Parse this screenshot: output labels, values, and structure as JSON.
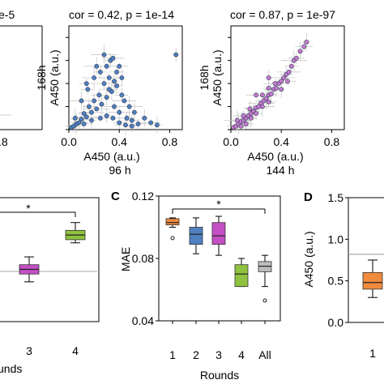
{
  "colors": {
    "blue": "#4f80c0",
    "pink": "#c87ad0",
    "orange": "#f08a3c",
    "green": "#8fc23e",
    "magenta": "#c44fc4",
    "gray": "#bdbdbd",
    "purple": "#a48ad6"
  },
  "chart_data": [
    {
      "id": "scatter-left-cut",
      "type": "scatter",
      "title": "e-5",
      "x_ticks": [
        ".8"
      ],
      "x_range": [
        0,
        0.9
      ]
    },
    {
      "id": "scatter-96h",
      "type": "scatter",
      "title": "cor = 0.42, p = 1e-14",
      "xlabel": "A450 (a.u.)",
      "xlabel2": "96 h",
      "ylabel": "168h",
      "ylabel2": "A450 (a.u.)",
      "x_range": [
        0,
        0.9
      ],
      "y_range": [
        0,
        0.9
      ],
      "x_ticks": [
        "0.0",
        "0.4",
        "0.8"
      ],
      "y_ticks": [
        "0.0",
        "0.2",
        "0.4",
        "0.6",
        "0.8"
      ],
      "color": "blue",
      "points": [
        [
          0.02,
          0.02
        ],
        [
          0.04,
          0.03
        ],
        [
          0.06,
          0.05
        ],
        [
          0.08,
          0.06
        ],
        [
          0.05,
          0.1
        ],
        [
          0.1,
          0.09
        ],
        [
          0.12,
          0.14
        ],
        [
          0.14,
          0.11
        ],
        [
          0.16,
          0.2
        ],
        [
          0.18,
          0.15
        ],
        [
          0.2,
          0.25
        ],
        [
          0.22,
          0.18
        ],
        [
          0.24,
          0.3
        ],
        [
          0.26,
          0.22
        ],
        [
          0.28,
          0.4
        ],
        [
          0.3,
          0.28
        ],
        [
          0.32,
          0.45
        ],
        [
          0.34,
          0.33
        ],
        [
          0.36,
          0.2
        ],
        [
          0.38,
          0.38
        ],
        [
          0.4,
          0.15
        ],
        [
          0.42,
          0.3
        ],
        [
          0.44,
          0.25
        ],
        [
          0.46,
          0.1
        ],
        [
          0.48,
          0.2
        ],
        [
          0.5,
          0.08
        ],
        [
          0.52,
          0.15
        ],
        [
          0.55,
          0.05
        ],
        [
          0.6,
          0.1
        ],
        [
          0.65,
          0.06
        ],
        [
          0.7,
          0.04
        ],
        [
          0.3,
          0.55
        ],
        [
          0.33,
          0.6
        ],
        [
          0.35,
          0.62
        ],
        [
          0.25,
          0.5
        ],
        [
          0.2,
          0.45
        ],
        [
          0.15,
          0.35
        ],
        [
          0.28,
          0.65
        ],
        [
          0.38,
          0.5
        ],
        [
          0.42,
          0.45
        ],
        [
          0.12,
          0.05
        ],
        [
          0.18,
          0.08
        ],
        [
          0.25,
          0.1
        ],
        [
          0.3,
          0.12
        ],
        [
          0.35,
          0.1
        ],
        [
          0.4,
          0.06
        ],
        [
          0.45,
          0.04
        ],
        [
          0.5,
          0.03
        ],
        [
          0.1,
          0.25
        ],
        [
          0.14,
          0.4
        ],
        [
          0.22,
          0.55
        ],
        [
          0.32,
          0.35
        ],
        [
          0.36,
          0.42
        ],
        [
          0.4,
          0.55
        ],
        [
          0.85,
          0.65
        ]
      ]
    },
    {
      "id": "scatter-144h",
      "type": "scatter",
      "title": "cor = 0.87, p = 1e-97",
      "xlabel": "A450 (a.u.)",
      "xlabel2": "144 h",
      "ylabel": "168h",
      "ylabel2": "A450 (a.u.)",
      "x_range": [
        0,
        0.9
      ],
      "y_range": [
        0,
        0.9
      ],
      "x_ticks": [
        "0.0",
        "0.4",
        "0.8"
      ],
      "y_ticks": [
        "0.0",
        "0.2",
        "0.4",
        "0.6",
        "0.8"
      ],
      "color": "pink",
      "points": [
        [
          0.02,
          0.02
        ],
        [
          0.04,
          0.03
        ],
        [
          0.06,
          0.05
        ],
        [
          0.08,
          0.07
        ],
        [
          0.1,
          0.08
        ],
        [
          0.12,
          0.1
        ],
        [
          0.14,
          0.12
        ],
        [
          0.16,
          0.14
        ],
        [
          0.18,
          0.16
        ],
        [
          0.2,
          0.19
        ],
        [
          0.22,
          0.2
        ],
        [
          0.24,
          0.23
        ],
        [
          0.26,
          0.25
        ],
        [
          0.28,
          0.27
        ],
        [
          0.3,
          0.3
        ],
        [
          0.32,
          0.31
        ],
        [
          0.34,
          0.35
        ],
        [
          0.36,
          0.36
        ],
        [
          0.38,
          0.4
        ],
        [
          0.4,
          0.42
        ],
        [
          0.42,
          0.45
        ],
        [
          0.44,
          0.48
        ],
        [
          0.46,
          0.5
        ],
        [
          0.48,
          0.55
        ],
        [
          0.5,
          0.6
        ],
        [
          0.52,
          0.62
        ],
        [
          0.55,
          0.68
        ],
        [
          0.58,
          0.72
        ],
        [
          0.6,
          0.76
        ],
        [
          0.1,
          0.12
        ],
        [
          0.15,
          0.18
        ],
        [
          0.25,
          0.3
        ],
        [
          0.3,
          0.36
        ],
        [
          0.35,
          0.4
        ],
        [
          0.2,
          0.14
        ],
        [
          0.25,
          0.2
        ],
        [
          0.3,
          0.24
        ],
        [
          0.05,
          0.08
        ],
        [
          0.12,
          0.05
        ],
        [
          0.4,
          0.35
        ],
        [
          0.45,
          0.42
        ],
        [
          0.3,
          0.45
        ],
        [
          0.2,
          0.3
        ],
        [
          0.16,
          0.1
        ],
        [
          0.08,
          0.03
        ]
      ]
    },
    {
      "id": "box-left-cut",
      "type": "box",
      "categories": [
        "3",
        "4"
      ],
      "xlabel": "unds",
      "annotation": "*",
      "reference_line": true,
      "boxes": [
        {
          "category": "3",
          "color": "magenta",
          "whisker_low": 0.065,
          "q1": 0.07,
          "median": 0.073,
          "q3": 0.076,
          "whisker_high": 0.081
        },
        {
          "category": "4",
          "color": "green",
          "whisker_low": 0.09,
          "q1": 0.092,
          "median": 0.095,
          "q3": 0.098,
          "whisker_high": 0.103
        }
      ]
    },
    {
      "id": "box-C",
      "panel": "C",
      "type": "box",
      "xlabel": "Rounds",
      "ylabel": "MAE",
      "ylim": [
        0.04,
        0.12
      ],
      "y_ticks": [
        "0.04",
        "0.08",
        "0.12"
      ],
      "categories": [
        "1",
        "2",
        "3",
        "4",
        "All"
      ],
      "annotation": "*",
      "boxes": [
        {
          "category": "1",
          "color": "orange",
          "whisker_low": 0.1,
          "q1": 0.1015,
          "median": 0.103,
          "q3": 0.1055,
          "whisker_high": 0.106,
          "outliers": [
            0.093
          ]
        },
        {
          "category": "2",
          "color": "blue",
          "whisker_low": 0.083,
          "q1": 0.089,
          "median": 0.0955,
          "q3": 0.1,
          "whisker_high": 0.106,
          "outliers": []
        },
        {
          "category": "3",
          "color": "magenta",
          "whisker_low": 0.082,
          "q1": 0.089,
          "median": 0.0945,
          "q3": 0.103,
          "whisker_high": 0.107,
          "outliers": []
        },
        {
          "category": "4",
          "color": "green",
          "whisker_low": 0.062,
          "q1": 0.062,
          "median": 0.07,
          "q3": 0.076,
          "whisker_high": 0.08,
          "outliers": []
        },
        {
          "category": "All",
          "color": "gray",
          "whisker_low": 0.062,
          "q1": 0.0715,
          "median": 0.075,
          "q3": 0.078,
          "whisker_high": 0.082,
          "outliers": [
            0.053
          ]
        }
      ]
    },
    {
      "id": "box-D",
      "panel": "D",
      "type": "box",
      "ylabel": "A450 (a.u.)",
      "ylim": [
        0,
        1.5
      ],
      "y_ticks": [
        "0.0",
        "0.5",
        "1.0",
        "1.5"
      ],
      "categories": [
        "1"
      ],
      "reference_line": 0.82,
      "boxes": [
        {
          "category": "1",
          "color": "orange",
          "whisker_low": 0.3,
          "q1": 0.4,
          "median": 0.48,
          "q3": 0.6,
          "whisker_high": 0.75
        }
      ]
    }
  ]
}
